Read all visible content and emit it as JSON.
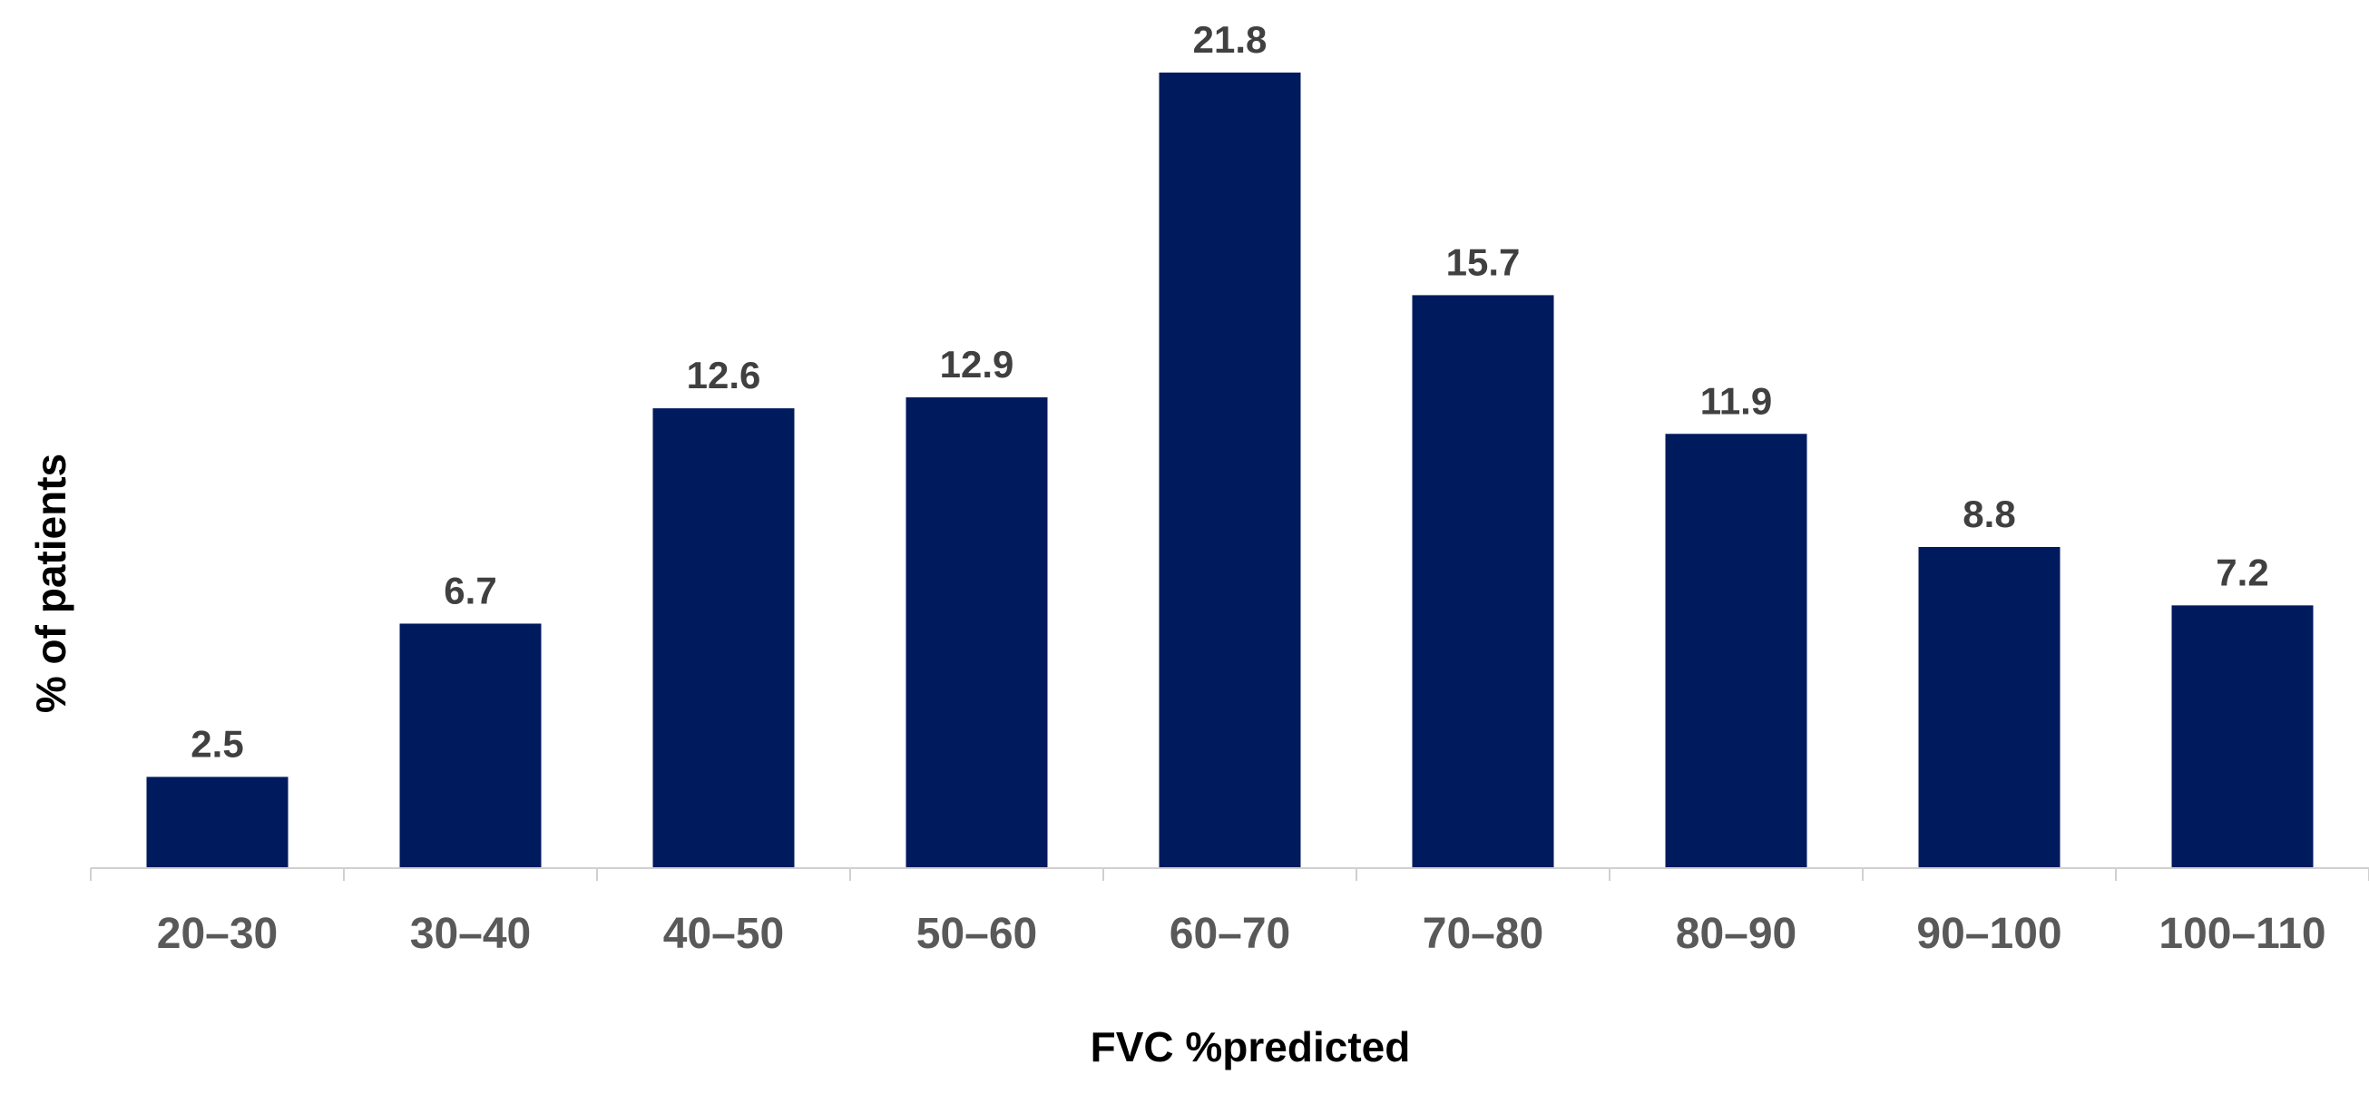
{
  "chart_data": {
    "type": "bar",
    "categories": [
      "20–30",
      "30–40",
      "40–50",
      "50–60",
      "60–70",
      "70–80",
      "80–90",
      "90–100",
      "100–110"
    ],
    "values": [
      2.5,
      6.7,
      12.6,
      12.9,
      21.8,
      15.7,
      11.9,
      8.8,
      7.2
    ],
    "data_labels": [
      "2.5",
      "6.7",
      "12.6",
      "12.9",
      "21.8",
      "15.7",
      "11.9",
      "8.8",
      "7.2"
    ],
    "title": "",
    "xlabel": "FVC %predicted",
    "ylabel": "% of patients",
    "ylim": [
      0,
      21.8
    ],
    "grid": false,
    "legend": "none",
    "bar_color": "#001A5E"
  }
}
